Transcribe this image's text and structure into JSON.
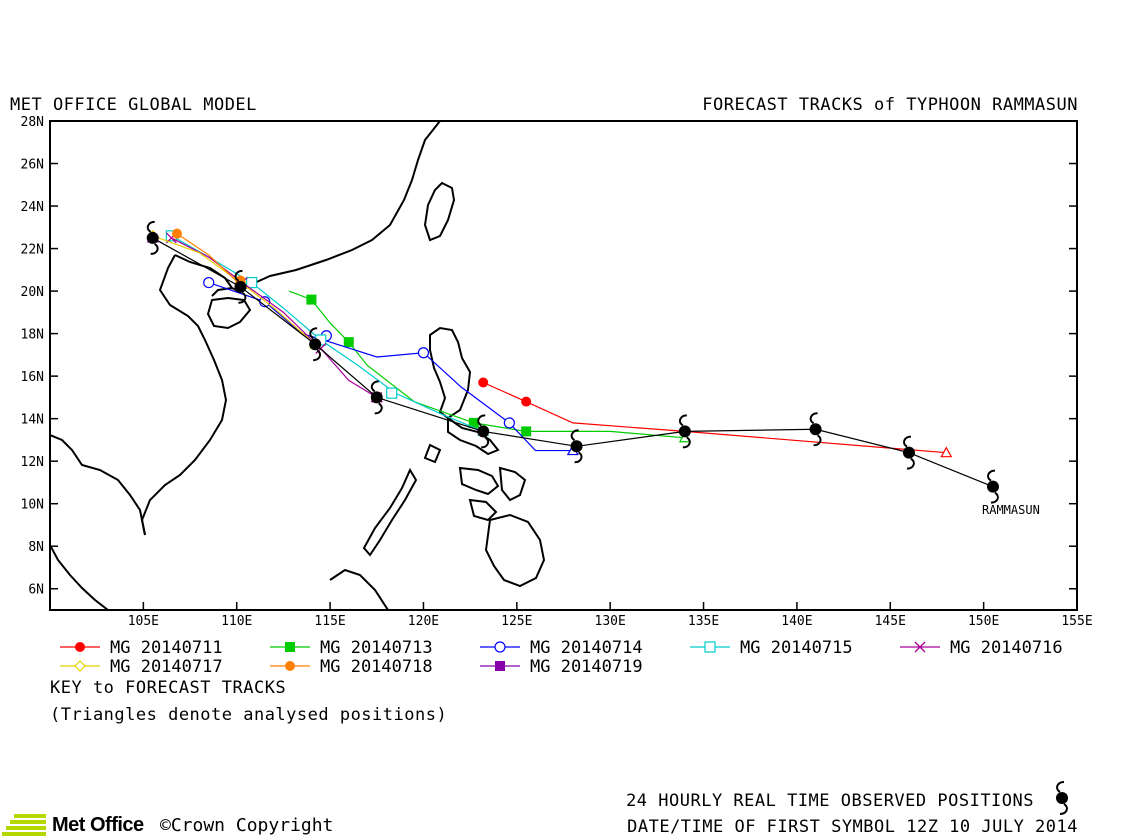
{
  "header": {
    "left_title": "MET OFFICE GLOBAL MODEL",
    "right_title": "FORECAST TRACKS of TYPHOON RAMMASUN"
  },
  "map": {
    "lon_range": [
      100,
      155
    ],
    "lat_range": [
      5,
      28
    ],
    "lon_ticks": [
      "105E",
      "110E",
      "115E",
      "120E",
      "125E",
      "130E",
      "135E",
      "140E",
      "145E",
      "150E",
      "155E"
    ],
    "lat_ticks": [
      "6N",
      "8N",
      "10N",
      "12N",
      "14N",
      "16N",
      "18N",
      "20N",
      "22N",
      "24N",
      "26N",
      "28N"
    ],
    "storm_label": "RAMMASUN"
  },
  "observed_track": {
    "color": "#000000",
    "points": [
      [
        150.5,
        10.8
      ],
      [
        146.0,
        12.4
      ],
      [
        141.0,
        13.5
      ],
      [
        134.0,
        13.4
      ],
      [
        128.2,
        12.7
      ],
      [
        123.2,
        13.4
      ],
      [
        117.5,
        15.0
      ],
      [
        114.2,
        17.5
      ],
      [
        110.2,
        20.2
      ],
      [
        105.5,
        22.5
      ]
    ]
  },
  "legend": {
    "title": "KEY to FORECAST TRACKS",
    "note": "(Triangles denote analysed positions)",
    "entries": [
      {
        "label": "MG 20140711",
        "color": "#ff0000",
        "marker": "circle-filled"
      },
      {
        "label": "MG 20140713",
        "color": "#00cc00",
        "marker": "square-filled"
      },
      {
        "label": "MG 20140714",
        "color": "#0000ff",
        "marker": "circle-open"
      },
      {
        "label": "MG 20140715",
        "color": "#00cccc",
        "marker": "square-open"
      },
      {
        "label": "MG 20140716",
        "color": "#aa0099",
        "marker": "cross"
      },
      {
        "label": "MG 20140717",
        "color": "#e8d000",
        "marker": "diamond-open"
      },
      {
        "label": "MG 20140718",
        "color": "#ff8000",
        "marker": "circle-filled"
      },
      {
        "label": "MG 20140719",
        "color": "#8800aa",
        "marker": "square-filled"
      }
    ]
  },
  "forecast_tracks": [
    {
      "color": "#ff0000",
      "marker": "circle-filled",
      "analysed": [
        148.0,
        12.4
      ],
      "points": [
        [
          148.0,
          12.4
        ],
        [
          134.0,
          13.4
        ],
        [
          128.0,
          13.8
        ],
        [
          125.5,
          14.8
        ],
        [
          123.2,
          15.7
        ]
      ],
      "marked": [
        [
          125.5,
          14.8
        ],
        [
          123.2,
          15.7
        ]
      ]
    },
    {
      "color": "#00cc00",
      "marker": "square-filled",
      "analysed": [
        134.0,
        13.1
      ],
      "points": [
        [
          134.0,
          13.1
        ],
        [
          130.0,
          13.4
        ],
        [
          125.5,
          13.4
        ],
        [
          122.7,
          13.8
        ],
        [
          119.5,
          14.8
        ],
        [
          117.0,
          16.5
        ],
        [
          116.0,
          17.6
        ],
        [
          115.0,
          18.5
        ],
        [
          114.0,
          19.6
        ],
        [
          112.8,
          20.0
        ]
      ],
      "marked": [
        [
          125.5,
          13.4
        ],
        [
          122.7,
          13.8
        ],
        [
          116.0,
          17.6
        ],
        [
          114.0,
          19.6
        ]
      ]
    },
    {
      "color": "#0000ff",
      "marker": "circle-open",
      "analysed": [
        128.0,
        12.5
      ],
      "points": [
        [
          128.0,
          12.5
        ],
        [
          126.0,
          12.5
        ],
        [
          124.6,
          13.8
        ],
        [
          122.0,
          15.5
        ],
        [
          120.0,
          17.1
        ],
        [
          117.5,
          16.9
        ],
        [
          115.0,
          17.6
        ],
        [
          113.5,
          18.0
        ],
        [
          111.5,
          19.5
        ],
        [
          108.5,
          20.4
        ]
      ],
      "marked": [
        [
          124.6,
          13.8
        ],
        [
          120.0,
          17.1
        ],
        [
          114.8,
          17.9
        ],
        [
          111.5,
          19.5
        ],
        [
          108.5,
          20.4
        ]
      ]
    },
    {
      "color": "#00cccc",
      "marker": "square-open",
      "analysed": [
        123.2,
        13.4
      ],
      "points": [
        [
          123.2,
          13.4
        ],
        [
          121.0,
          14.2
        ],
        [
          118.5,
          15.2
        ],
        [
          116.5,
          16.5
        ],
        [
          114.5,
          17.7
        ],
        [
          112.5,
          19.2
        ],
        [
          110.8,
          20.4
        ],
        [
          108.5,
          21.6
        ],
        [
          106.5,
          22.6
        ]
      ],
      "marked": [
        [
          118.3,
          15.2
        ],
        [
          114.5,
          17.7
        ],
        [
          110.8,
          20.4
        ],
        [
          106.5,
          22.6
        ]
      ]
    },
    {
      "color": "#aa0099",
      "marker": "cross",
      "analysed": [
        117.5,
        15.0
      ],
      "points": [
        [
          117.5,
          15.0
        ],
        [
          116.0,
          15.8
        ],
        [
          114.5,
          17.3
        ],
        [
          112.5,
          19.0
        ],
        [
          110.3,
          20.4
        ],
        [
          108.5,
          21.6
        ],
        [
          106.5,
          22.5
        ]
      ],
      "marked": [
        [
          117.5,
          15.0
        ],
        [
          114.5,
          17.3
        ],
        [
          110.3,
          20.4
        ],
        [
          106.5,
          22.5
        ]
      ]
    },
    {
      "color": "#e8d000",
      "marker": "diamond-open",
      "analysed": [
        114.2,
        17.5
      ],
      "points": [
        [
          114.2,
          17.5
        ],
        [
          112.0,
          19.2
        ],
        [
          110.2,
          20.4
        ],
        [
          108.0,
          21.8
        ],
        [
          105.5,
          22.6
        ]
      ],
      "marked": [
        [
          110.2,
          20.4
        ],
        [
          105.5,
          22.6
        ]
      ]
    },
    {
      "color": "#ff8000",
      "marker": "circle-filled",
      "analysed": [
        110.2,
        20.3
      ],
      "points": [
        [
          110.2,
          20.3
        ],
        [
          108.5,
          21.7
        ],
        [
          106.8,
          22.7
        ]
      ],
      "marked": [
        [
          110.2,
          20.5
        ],
        [
          106.8,
          22.7
        ]
      ]
    },
    {
      "color": "#8800aa",
      "marker": "square-filled",
      "analysed": [
        105.5,
        22.5
      ],
      "points": [
        [
          105.5,
          22.5
        ]
      ],
      "marked": []
    }
  ],
  "footer": {
    "observed_label": "24 HOURLY REAL TIME OBSERVED POSITIONS",
    "first_symbol_label": "DATE/TIME OF FIRST SYMBOL 12Z 10 JULY 2014",
    "logo_text": "Met Office",
    "copyright": "©Crown Copyright"
  }
}
